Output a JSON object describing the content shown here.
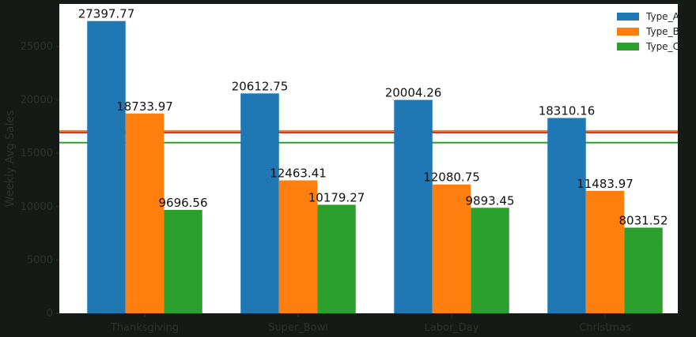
{
  "chart_data": {
    "type": "bar",
    "title": "",
    "xlabel": "",
    "ylabel": "Weekly Avg Sales",
    "categories": [
      "Thanksgiving",
      "Super_Bowl",
      "Labor_Day",
      "Christmas"
    ],
    "series": [
      {
        "name": "Type_A",
        "color": "#1f77b4",
        "values": [
          27397.77,
          20612.75,
          20004.26,
          18310.16
        ]
      },
      {
        "name": "Type_B",
        "color": "#ff7f0e",
        "values": [
          18733.97,
          12463.41,
          12080.75,
          11483.97
        ]
      },
      {
        "name": "Type_C",
        "color": "#2ca02c",
        "values": [
          9696.56,
          10179.27,
          9893.45,
          8031.52
        ]
      }
    ],
    "value_labels": [
      [
        "27397.77",
        "20612.75",
        "20004.26",
        "18310.16"
      ],
      [
        "18733.97",
        "12463.41",
        "12080.75",
        "11483.97"
      ],
      [
        "9696.56",
        "10179.27",
        "9893.45",
        "8031.52"
      ]
    ],
    "reference_lines": [
      {
        "value": 17100,
        "color": "#ff7f0e"
      },
      {
        "value": 16950,
        "color": "#d62728"
      },
      {
        "value": 16000,
        "color": "#2ca02c"
      }
    ],
    "yticks": [
      0,
      5000,
      10000,
      15000,
      20000,
      25000
    ],
    "ylim": [
      0,
      29000
    ],
    "legend_position": "top-right",
    "grid": false
  }
}
